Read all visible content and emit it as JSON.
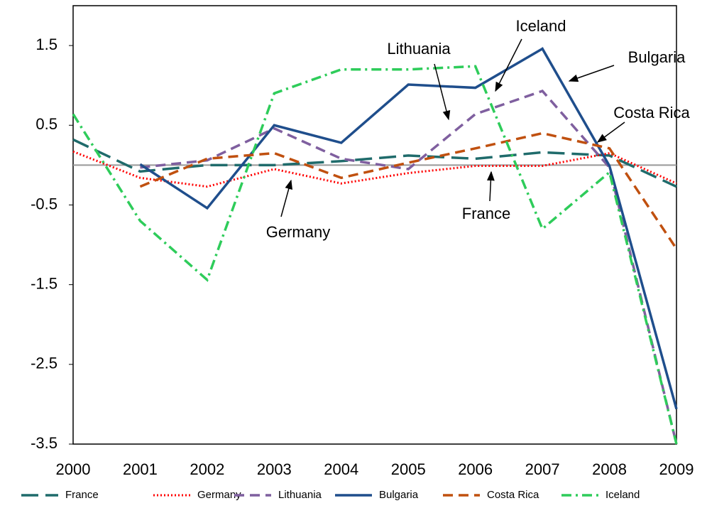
{
  "chart_data": {
    "type": "line",
    "categories": [
      "2000",
      "2001",
      "2002",
      "2003",
      "2004",
      "2005",
      "2006",
      "2007",
      "2008",
      "2009"
    ],
    "series": [
      {
        "name": "France",
        "color": "#1f6b6b",
        "line_style": "long-dash",
        "values": [
          0.32,
          -0.08,
          0,
          0,
          0.05,
          0.12,
          0.08,
          0.16,
          0.12,
          -0.27
        ]
      },
      {
        "name": "Germany",
        "color": "#ff0000",
        "line_style": "dotted",
        "values": [
          0.17,
          -0.16,
          -0.27,
          -0.05,
          -0.23,
          -0.1,
          -0.01,
          -0.01,
          0.15,
          -0.23
        ]
      },
      {
        "name": "Lithuania",
        "color": "#7f5f9f",
        "line_style": "dashed",
        "values": [
          null,
          -0.03,
          0.06,
          0.46,
          0.08,
          -0.05,
          0.64,
          0.93,
          -0.03,
          -3.5
        ]
      },
      {
        "name": "Bulgaria",
        "color": "#1f4e8c",
        "line_style": "solid",
        "values": [
          null,
          0.01,
          -0.54,
          0.5,
          0.28,
          1.01,
          0.97,
          1.46,
          -0.01,
          -3.06
        ]
      },
      {
        "name": "Costa Rica",
        "color": "#c0500f",
        "line_style": "dashed",
        "values": [
          null,
          -0.27,
          0.08,
          0.15,
          -0.16,
          0.03,
          0.21,
          0.4,
          0.21,
          -1.05
        ]
      },
      {
        "name": "Iceland",
        "color": "#2ecc5a",
        "line_style": "dash-dot",
        "values": [
          0.64,
          -0.7,
          -1.44,
          0.9,
          1.2,
          1.2,
          1.24,
          -0.8,
          -0.09,
          -3.5
        ]
      }
    ],
    "annotations": [
      "Iceland",
      "Lithuania",
      "Bulgaria",
      "Costa Rica",
      "France",
      "Germany"
    ],
    "ylim": [
      -3.5,
      2
    ],
    "yticks": [
      -3.5,
      -2.5,
      -1.5,
      -0.5,
      0.5,
      1.5
    ],
    "zero_line": true,
    "legend": "bottom"
  }
}
